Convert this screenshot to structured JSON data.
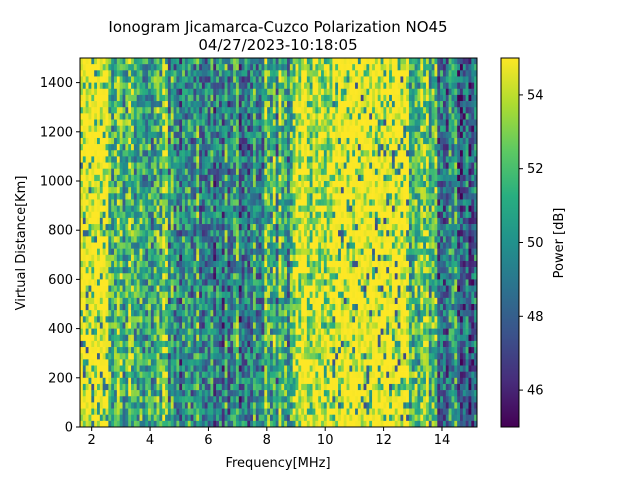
{
  "chart_data": {
    "type": "heatmap",
    "title_line1": "Ionogram Jicamarca-Cuzco Polarization NO45",
    "title_line2": "04/27/2023-10:18:05",
    "xlabel": "Frequency[MHz]",
    "ylabel": "Virtual Distance[Km]",
    "xlim": [
      1.6,
      15.2
    ],
    "ylim": [
      0,
      1500
    ],
    "x_ticks": [
      2,
      4,
      6,
      8,
      10,
      12,
      14
    ],
    "y_ticks": [
      0,
      200,
      400,
      600,
      800,
      1000,
      1200,
      1400
    ],
    "colorbar": {
      "label": "Power [dB]",
      "colormap": "viridis",
      "range": [
        45,
        55
      ],
      "ticks": [
        46,
        48,
        50,
        52,
        54
      ]
    },
    "frequency_bands": [
      {
        "from": 1.6,
        "to": 2.6,
        "median_power_db": 55
      },
      {
        "from": 2.6,
        "to": 4.6,
        "median_power_db": 52
      },
      {
        "from": 4.6,
        "to": 7.6,
        "median_power_db": 50
      },
      {
        "from": 7.6,
        "to": 9.0,
        "median_power_db": 51
      },
      {
        "from": 9.0,
        "to": 10.2,
        "median_power_db": 54
      },
      {
        "from": 10.2,
        "to": 12.9,
        "median_power_db": 55
      },
      {
        "from": 12.9,
        "to": 13.8,
        "median_power_db": 52
      },
      {
        "from": 13.8,
        "to": 15.2,
        "median_power_db": 49
      }
    ],
    "grid": false,
    "legend": "none"
  }
}
